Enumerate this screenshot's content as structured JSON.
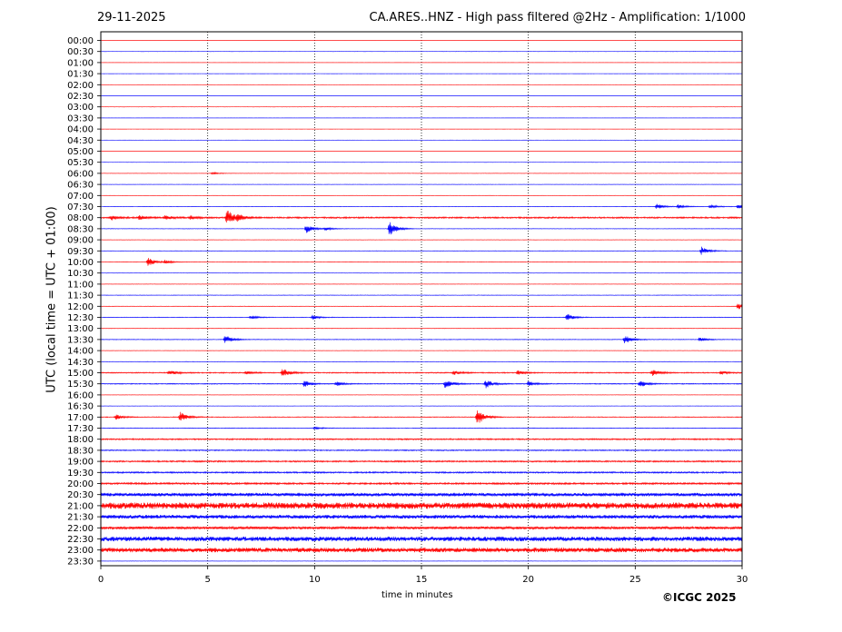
{
  "header": {
    "date": "29-11-2025",
    "title": "CA.ARES..HNZ - High pass filtered @2Hz - Amplification: 1/1000"
  },
  "footer": {
    "copyright": "©ICGC 2025"
  },
  "colors": {
    "red": "#ff0000",
    "blue": "#0000ff"
  },
  "chart_data": {
    "type": "line",
    "xlabel": "time in minutes",
    "ylabel": "UTC (local time = UTC + 01:00)",
    "xlim": [
      0,
      30
    ],
    "x_ticks": [
      0,
      5,
      10,
      15,
      20,
      25,
      30
    ],
    "grid": "vertical dotted at 5,10,15,20,25",
    "rows": [
      "00:00",
      "00:30",
      "01:00",
      "01:30",
      "02:00",
      "02:30",
      "03:00",
      "03:30",
      "04:00",
      "04:30",
      "05:00",
      "05:30",
      "06:00",
      "06:30",
      "07:00",
      "07:30",
      "08:00",
      "08:30",
      "09:00",
      "09:30",
      "10:00",
      "10:30",
      "11:00",
      "11:30",
      "12:00",
      "12:30",
      "13:00",
      "13:30",
      "14:00",
      "14:30",
      "15:00",
      "15:30",
      "16:00",
      "16:30",
      "17:00",
      "17:30",
      "18:00",
      "18:30",
      "19:00",
      "19:30",
      "20:00",
      "20:30",
      "21:00",
      "21:30",
      "22:00",
      "22:30",
      "23:00",
      "23:30"
    ],
    "row_colors": "alternating red (even) / blue (odd)",
    "noise_levels": [
      0.05,
      0.05,
      0.05,
      0.05,
      0.05,
      0.05,
      0.05,
      0.05,
      0.05,
      0.05,
      0.05,
      0.05,
      0.1,
      0.1,
      0.1,
      0.15,
      0.5,
      0.15,
      0.1,
      0.15,
      0.15,
      0.1,
      0.1,
      0.15,
      0.15,
      0.2,
      0.15,
      0.2,
      0.1,
      0.15,
      0.35,
      0.3,
      0.1,
      0.1,
      0.25,
      0.2,
      0.45,
      0.35,
      0.5,
      0.5,
      0.6,
      1.2,
      2.2,
      1.3,
      0.9,
      1.6,
      1.6,
      0.1
    ],
    "events": [
      {
        "row": "06:00",
        "t": 5.2,
        "amp": 1.5
      },
      {
        "row": "07:30",
        "t": 26.0,
        "amp": 3.5
      },
      {
        "row": "07:30",
        "t": 27.0,
        "amp": 2.5
      },
      {
        "row": "07:30",
        "t": 28.5,
        "amp": 2.5
      },
      {
        "row": "07:30",
        "t": 29.8,
        "amp": 2.5
      },
      {
        "row": "08:00",
        "t": 0.5,
        "amp": 2.5
      },
      {
        "row": "08:00",
        "t": 1.8,
        "amp": 2.5
      },
      {
        "row": "08:00",
        "t": 3.0,
        "amp": 2.5
      },
      {
        "row": "08:00",
        "t": 4.2,
        "amp": 2.0
      },
      {
        "row": "08:00",
        "t": 5.9,
        "amp": 9
      },
      {
        "row": "08:00",
        "t": 6.4,
        "amp": 3
      },
      {
        "row": "08:30",
        "t": 9.6,
        "amp": 5
      },
      {
        "row": "08:30",
        "t": 10.5,
        "amp": 2
      },
      {
        "row": "08:30",
        "t": 13.5,
        "amp": 8
      },
      {
        "row": "09:30",
        "t": 28.1,
        "amp": 5
      },
      {
        "row": "10:00",
        "t": 2.2,
        "amp": 5
      },
      {
        "row": "10:00",
        "t": 3.0,
        "amp": 2
      },
      {
        "row": "12:00",
        "t": 29.8,
        "amp": 4
      },
      {
        "row": "12:30",
        "t": 7.0,
        "amp": 2
      },
      {
        "row": "12:30",
        "t": 9.9,
        "amp": 2.5
      },
      {
        "row": "12:30",
        "t": 21.8,
        "amp": 4
      },
      {
        "row": "13:30",
        "t": 5.8,
        "amp": 5
      },
      {
        "row": "13:30",
        "t": 24.5,
        "amp": 5
      },
      {
        "row": "13:30",
        "t": 28.0,
        "amp": 2.5
      },
      {
        "row": "15:00",
        "t": 3.2,
        "amp": 3
      },
      {
        "row": "15:00",
        "t": 6.8,
        "amp": 2
      },
      {
        "row": "15:00",
        "t": 8.5,
        "amp": 5
      },
      {
        "row": "15:00",
        "t": 16.5,
        "amp": 2.5
      },
      {
        "row": "15:00",
        "t": 19.5,
        "amp": 2.5
      },
      {
        "row": "15:00",
        "t": 25.8,
        "amp": 4
      },
      {
        "row": "15:00",
        "t": 29.0,
        "amp": 2
      },
      {
        "row": "15:30",
        "t": 9.5,
        "amp": 4
      },
      {
        "row": "15:30",
        "t": 11.0,
        "amp": 2.5
      },
      {
        "row": "15:30",
        "t": 16.1,
        "amp": 6
      },
      {
        "row": "15:30",
        "t": 18.0,
        "amp": 5
      },
      {
        "row": "15:30",
        "t": 20.0,
        "amp": 3
      },
      {
        "row": "15:30",
        "t": 25.2,
        "amp": 4
      },
      {
        "row": "17:00",
        "t": 0.7,
        "amp": 3
      },
      {
        "row": "17:00",
        "t": 3.7,
        "amp": 6
      },
      {
        "row": "17:00",
        "t": 17.6,
        "amp": 9
      },
      {
        "row": "17:30",
        "t": 10.0,
        "amp": 1.5
      }
    ]
  }
}
